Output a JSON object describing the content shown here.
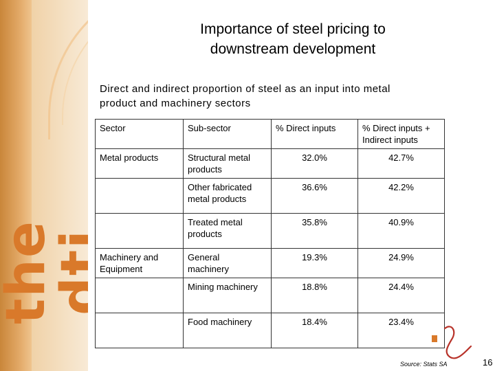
{
  "brand": {
    "logo_text": "the dti",
    "accent": "#d9792a",
    "band": "#f6e9d4"
  },
  "slide": {
    "title_line1": "Importance of steel pricing to",
    "title_line2": "downstream development",
    "subtitle_line1": "Direct and indirect proportion of steel as an input into metal",
    "subtitle_line2": "product and machinery sectors"
  },
  "table": {
    "headers": {
      "sector": "Sector",
      "subsector": "Sub-sector",
      "direct": "% Direct inputs",
      "total_line1": "% Direct inputs +",
      "total_line2": "Indirect inputs"
    },
    "rows": [
      {
        "sector": "Metal products",
        "sub1": "Structural metal",
        "sub2": "products",
        "direct": "32.0%",
        "total": "42.7%"
      },
      {
        "sector": "",
        "sub1": "Other fabricated",
        "sub2": "metal products",
        "direct": "36.6%",
        "total": "42.2%"
      },
      {
        "sector": "",
        "sub1": "Treated metal",
        "sub2": "products",
        "direct": "35.8%",
        "total": "40.9%"
      },
      {
        "sector1": "Machinery and",
        "sector2": "Equipment",
        "sub1": "General",
        "sub2": "machinery",
        "direct": "19.3%",
        "total": "24.9%"
      },
      {
        "sector": "",
        "sub1": "Mining machinery",
        "sub2": "",
        "direct": "18.8%",
        "total": "24.4%"
      },
      {
        "sector": "",
        "sub1": "Food machinery",
        "sub2": "",
        "direct": "18.4%",
        "total": "23.4%"
      }
    ]
  },
  "footer": {
    "source": "Source: Stats SA",
    "page_number": "16"
  }
}
